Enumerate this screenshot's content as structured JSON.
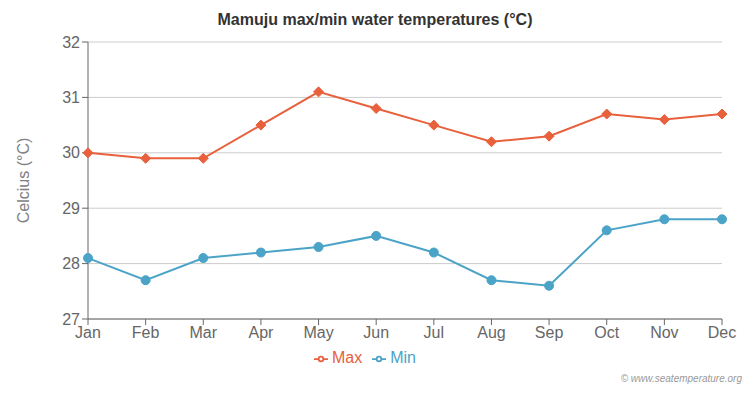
{
  "chart_data": {
    "type": "line",
    "title": "Mamuju max/min water temperatures (°C)",
    "ylabel": "Celcius (°C)",
    "categories": [
      "Jan",
      "Feb",
      "Mar",
      "Apr",
      "May",
      "Jun",
      "Jul",
      "Aug",
      "Sep",
      "Oct",
      "Nov",
      "Dec"
    ],
    "series": [
      {
        "name": "Max",
        "color": "#e8603c",
        "marker": "diamond",
        "values": [
          30.0,
          29.9,
          29.9,
          30.5,
          31.1,
          30.8,
          30.5,
          30.2,
          30.3,
          30.7,
          30.6,
          30.7
        ]
      },
      {
        "name": "Min",
        "color": "#4ba3c7",
        "marker": "circle",
        "values": [
          28.1,
          27.7,
          28.1,
          28.2,
          28.3,
          28.5,
          28.2,
          27.7,
          27.6,
          28.6,
          28.8,
          28.8
        ]
      }
    ],
    "ylim": [
      27,
      32
    ],
    "yticks": [
      27,
      28,
      29,
      30,
      31,
      32
    ],
    "grid": true,
    "legend": "bottom",
    "annotations": [
      "© www.seatemperature.org"
    ]
  }
}
